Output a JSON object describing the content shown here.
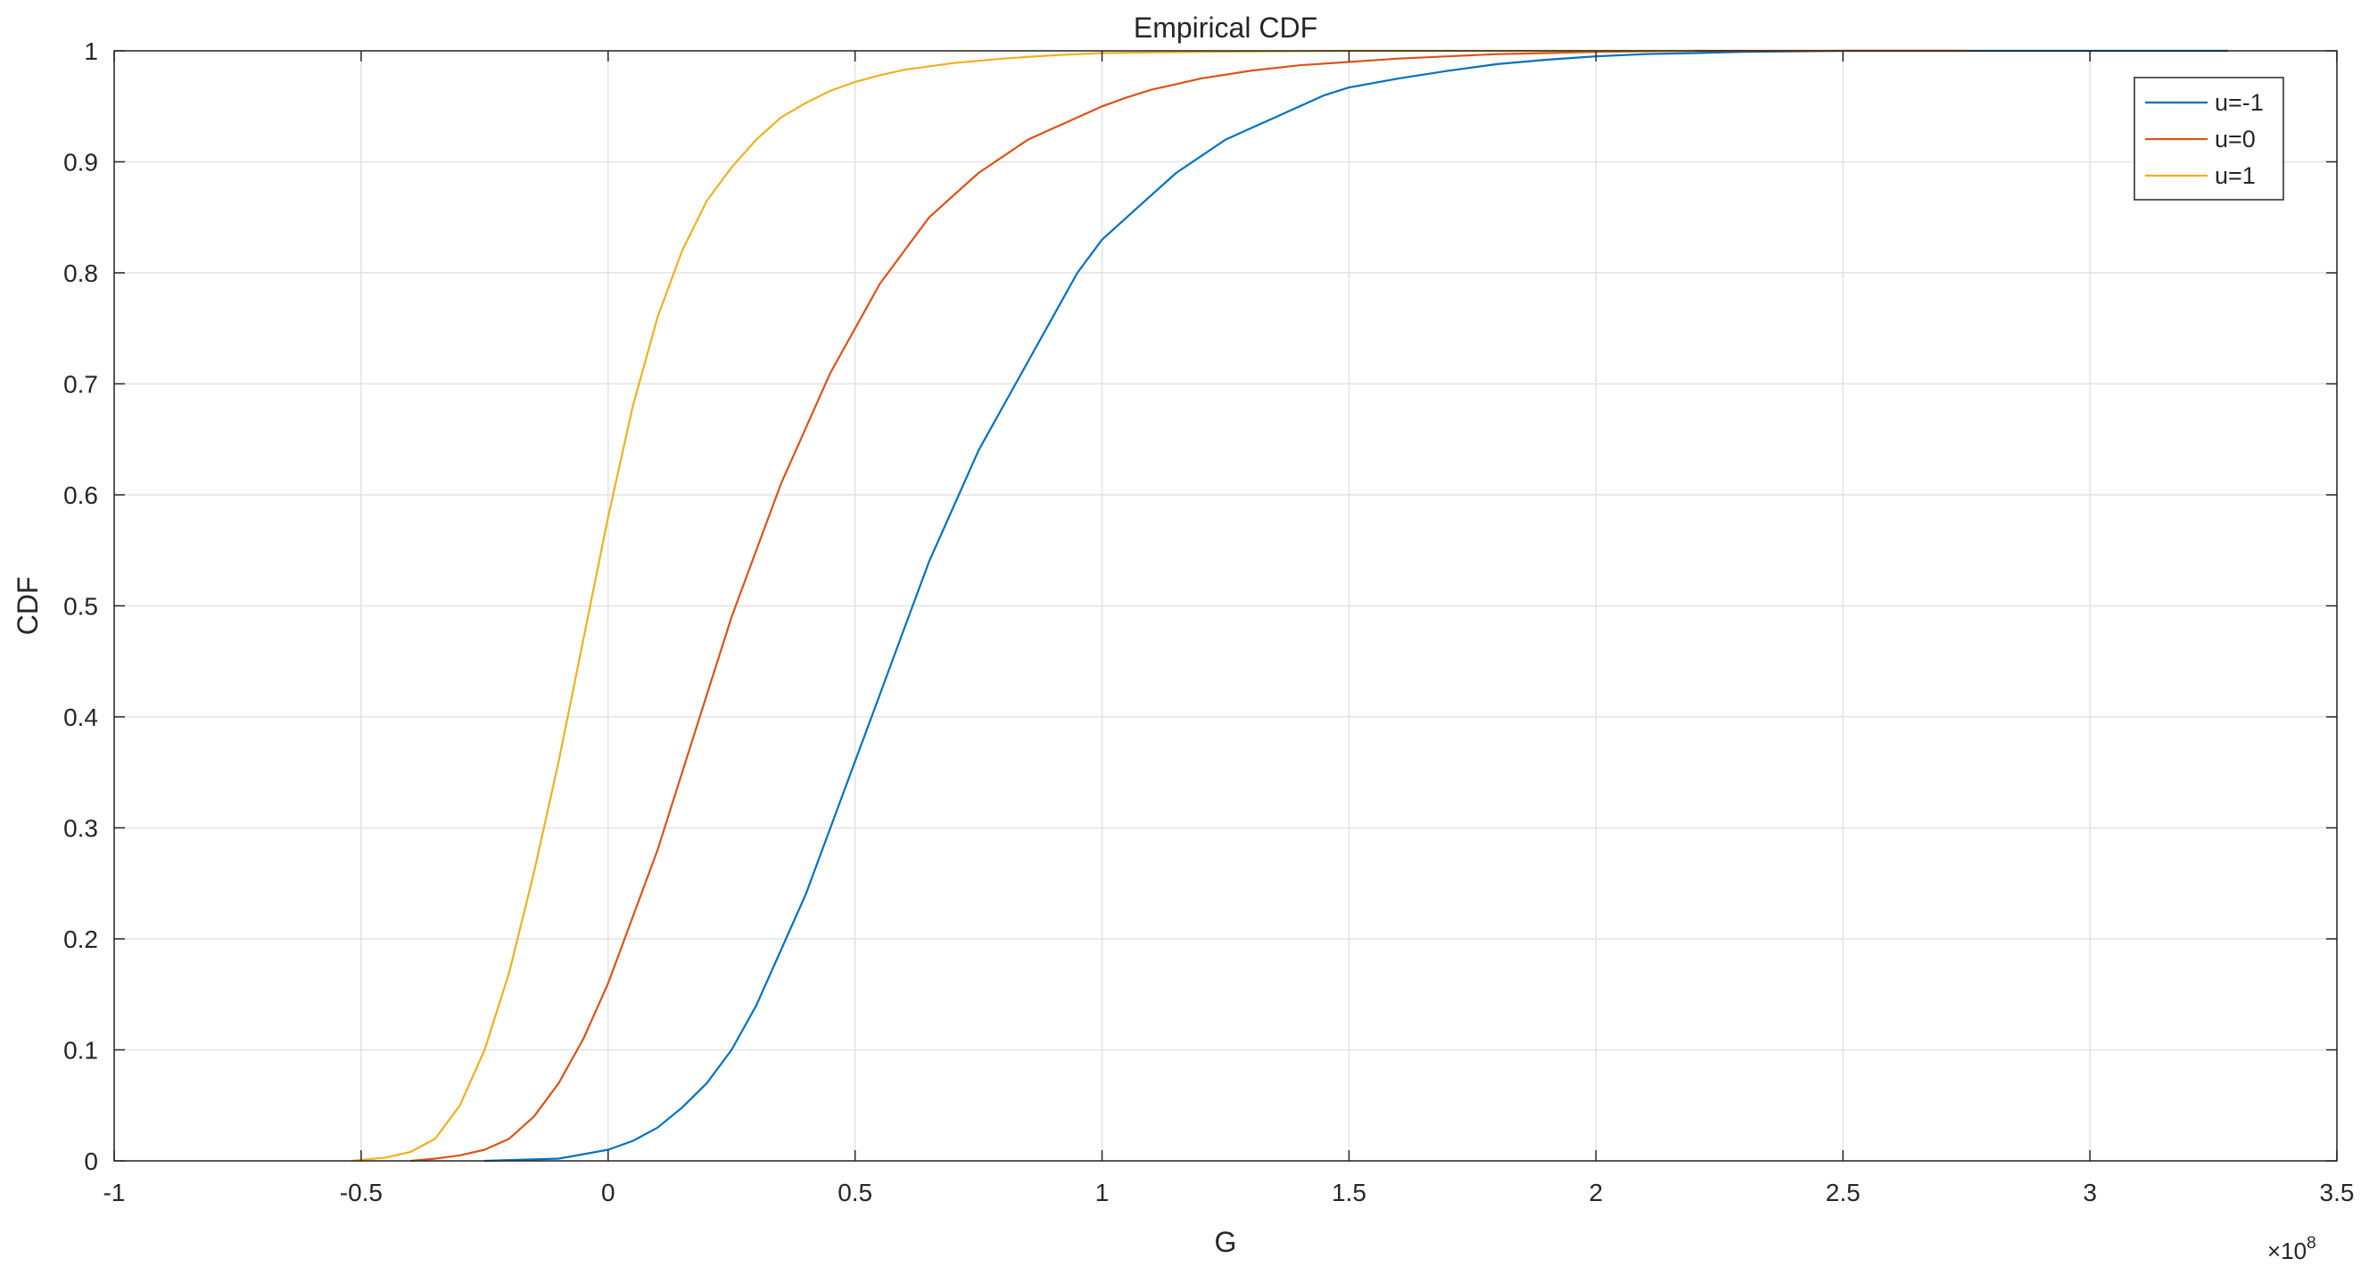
{
  "chart_data": {
    "type": "line",
    "title": "Empirical CDF",
    "xlabel": "G",
    "ylabel": "CDF",
    "x_exponent_prefix": "×10",
    "x_exponent_power": "8",
    "xlim": [
      -1,
      3.5
    ],
    "ylim": [
      0,
      1
    ],
    "xticks": [
      -1,
      -0.5,
      0,
      0.5,
      1,
      1.5,
      2,
      2.5,
      3,
      3.5
    ],
    "xtick_labels": [
      "-1",
      "-0.5",
      "0",
      "0.5",
      "1",
      "1.5",
      "2",
      "2.5",
      "3",
      "3.5"
    ],
    "yticks": [
      0,
      0.1,
      0.2,
      0.3,
      0.4,
      0.5,
      0.6,
      0.7,
      0.8,
      0.9,
      1
    ],
    "ytick_labels": [
      "0",
      "0.1",
      "0.2",
      "0.3",
      "0.4",
      "0.5",
      "0.6",
      "0.7",
      "0.8",
      "0.9",
      "1"
    ],
    "grid": true,
    "legend_position": "top-right",
    "series": [
      {
        "name": "u=-1",
        "color": "#0072BD",
        "x": [
          -0.25,
          -0.1,
          0,
          0.05,
          0.1,
          0.15,
          0.2,
          0.25,
          0.3,
          0.35,
          0.4,
          0.45,
          0.5,
          0.55,
          0.6,
          0.65,
          0.7,
          0.75,
          0.8,
          0.85,
          0.9,
          0.95,
          1.0,
          1.05,
          1.1,
          1.15,
          1.2,
          1.25,
          1.3,
          1.35,
          1.4,
          1.45,
          1.5,
          1.6,
          1.7,
          1.8,
          1.9,
          2.0,
          2.1,
          2.2,
          2.3,
          2.5,
          2.75,
          3.0,
          3.28
        ],
        "y": [
          0,
          0.002,
          0.01,
          0.018,
          0.03,
          0.048,
          0.07,
          0.1,
          0.14,
          0.19,
          0.24,
          0.3,
          0.36,
          0.42,
          0.48,
          0.54,
          0.59,
          0.64,
          0.68,
          0.72,
          0.76,
          0.8,
          0.83,
          0.85,
          0.87,
          0.89,
          0.905,
          0.92,
          0.93,
          0.94,
          0.95,
          0.96,
          0.967,
          0.975,
          0.982,
          0.988,
          0.992,
          0.995,
          0.997,
          0.998,
          0.999,
          1.0,
          1.0,
          1.0,
          1.0
        ]
      },
      {
        "name": "u=0",
        "color": "#D95319",
        "x": [
          -0.4,
          -0.35,
          -0.3,
          -0.25,
          -0.2,
          -0.15,
          -0.1,
          -0.05,
          0,
          0.05,
          0.1,
          0.15,
          0.2,
          0.25,
          0.3,
          0.35,
          0.4,
          0.45,
          0.5,
          0.55,
          0.6,
          0.65,
          0.7,
          0.75,
          0.8,
          0.85,
          0.9,
          0.95,
          1.0,
          1.05,
          1.1,
          1.15,
          1.2,
          1.3,
          1.4,
          1.5,
          1.6,
          1.7,
          1.8,
          1.9,
          2.0,
          2.2,
          2.5,
          2.75
        ],
        "y": [
          0,
          0.002,
          0.005,
          0.01,
          0.02,
          0.04,
          0.07,
          0.11,
          0.16,
          0.22,
          0.28,
          0.35,
          0.42,
          0.49,
          0.55,
          0.61,
          0.66,
          0.71,
          0.75,
          0.79,
          0.82,
          0.85,
          0.87,
          0.89,
          0.905,
          0.92,
          0.93,
          0.94,
          0.95,
          0.958,
          0.965,
          0.97,
          0.975,
          0.982,
          0.987,
          0.99,
          0.993,
          0.995,
          0.997,
          0.998,
          0.999,
          1.0,
          1.0,
          1.0
        ]
      },
      {
        "name": "u=1",
        "color": "#EDB120",
        "x": [
          -0.52,
          -0.45,
          -0.4,
          -0.35,
          -0.3,
          -0.25,
          -0.2,
          -0.15,
          -0.1,
          -0.05,
          0,
          0.05,
          0.1,
          0.15,
          0.2,
          0.25,
          0.3,
          0.35,
          0.4,
          0.45,
          0.5,
          0.55,
          0.6,
          0.7,
          0.8,
          0.9,
          1.0,
          1.2,
          1.5,
          2.0,
          2.2
        ],
        "y": [
          0,
          0.003,
          0.008,
          0.02,
          0.05,
          0.1,
          0.17,
          0.26,
          0.36,
          0.47,
          0.58,
          0.68,
          0.76,
          0.82,
          0.865,
          0.895,
          0.92,
          0.94,
          0.953,
          0.964,
          0.972,
          0.978,
          0.983,
          0.989,
          0.993,
          0.996,
          0.998,
          0.999,
          1.0,
          1.0,
          1.0
        ]
      }
    ]
  }
}
